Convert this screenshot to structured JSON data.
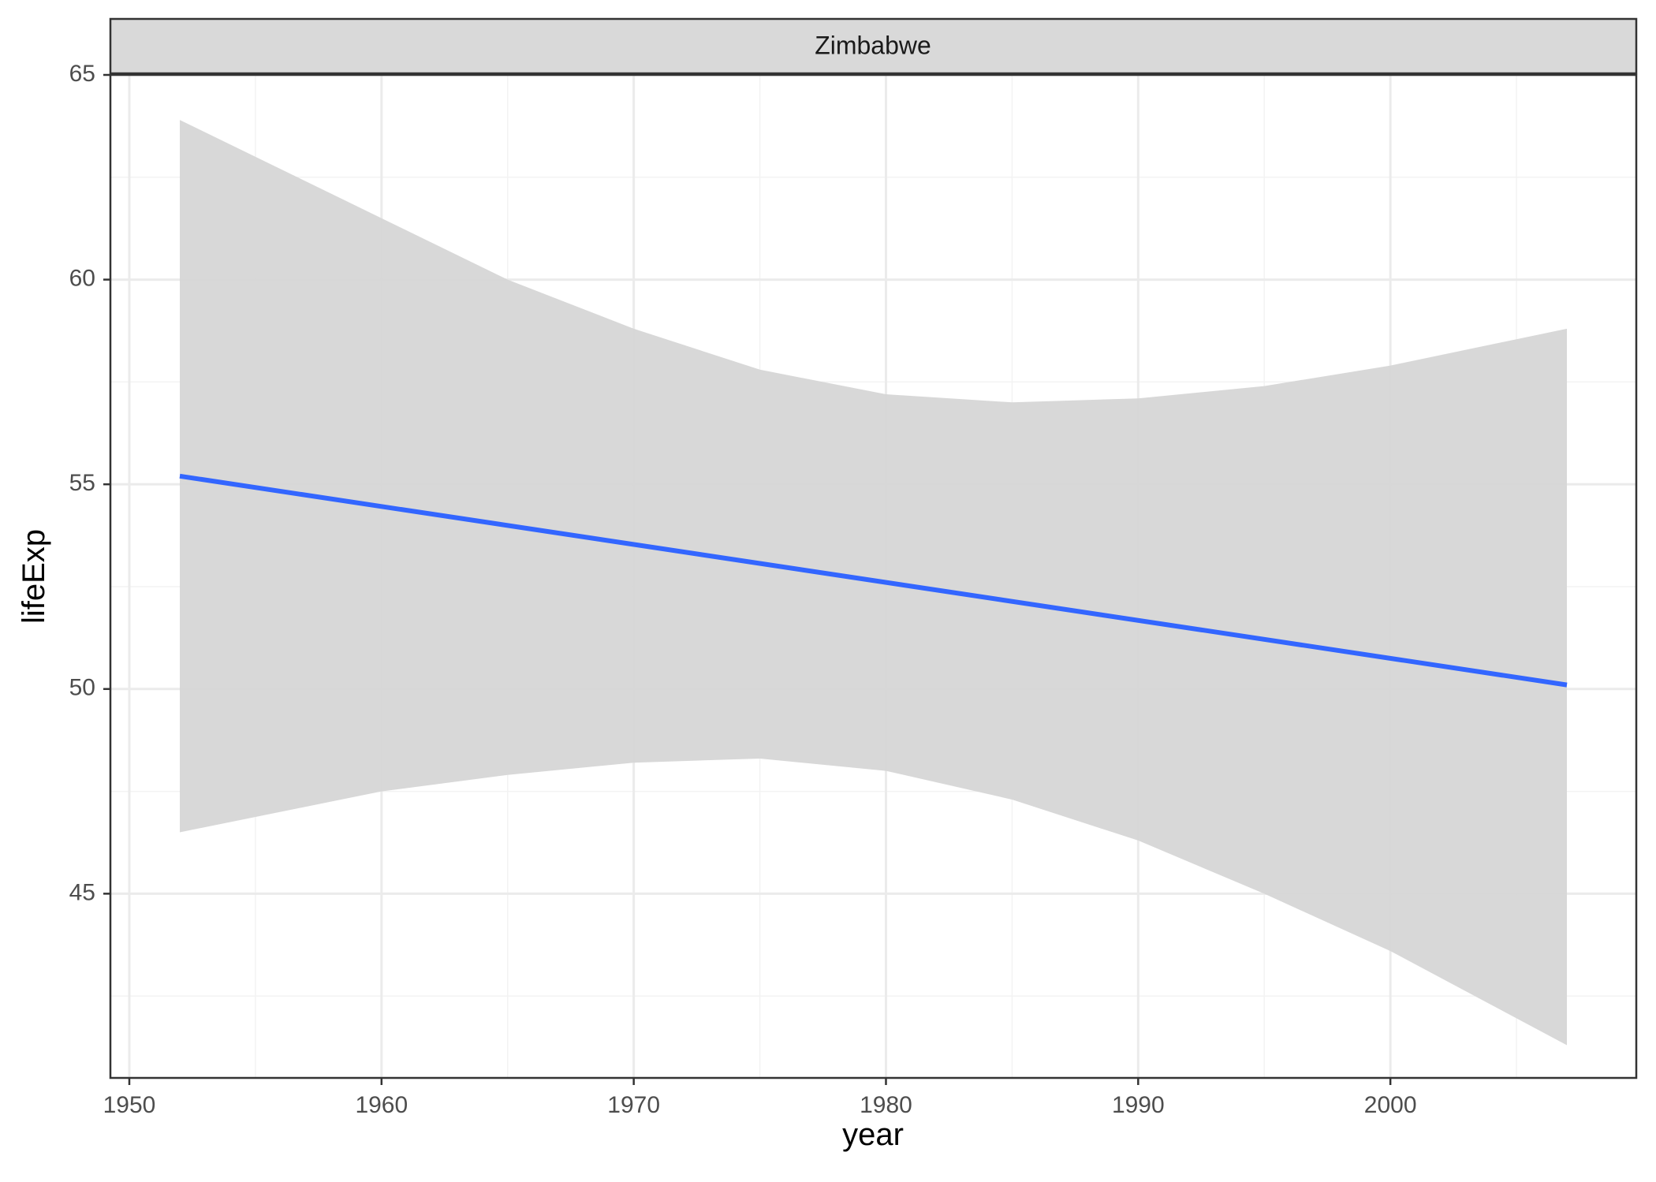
{
  "chart_data": {
    "type": "line",
    "facet_label": "Zimbabwe",
    "xlabel": "year",
    "ylabel": "lifeExp",
    "xlim": [
      1949.25,
      2009.75
    ],
    "ylim": [
      40.5,
      65
    ],
    "x_ticks": [
      1950,
      1960,
      1970,
      1980,
      1990,
      2000
    ],
    "y_ticks": [
      45,
      50,
      55,
      60,
      65
    ],
    "grid": true,
    "legend": "none",
    "series": [
      {
        "x": [
          1952,
          2007
        ],
        "values": [
          55.2,
          50.1
        ],
        "ribbon": {
          "x": [
            1952,
            1960,
            1965,
            1970,
            1975,
            1980,
            1985,
            1990,
            1995,
            2000,
            2007
          ],
          "upper": [
            63.9,
            61.5,
            60.0,
            58.8,
            57.8,
            57.2,
            57.0,
            57.1,
            57.4,
            57.9,
            58.8
          ],
          "lower": [
            46.5,
            47.5,
            47.9,
            48.2,
            48.3,
            48.0,
            47.3,
            46.3,
            45.0,
            43.6,
            41.3
          ]
        }
      }
    ],
    "colors": {
      "line": "#3366ff",
      "ribbon": "#d6d6d6",
      "strip": "#d9d9d9",
      "grid_major": "#ebebeb",
      "grid_minor": "#f3f3f3",
      "border": "#333333"
    }
  }
}
